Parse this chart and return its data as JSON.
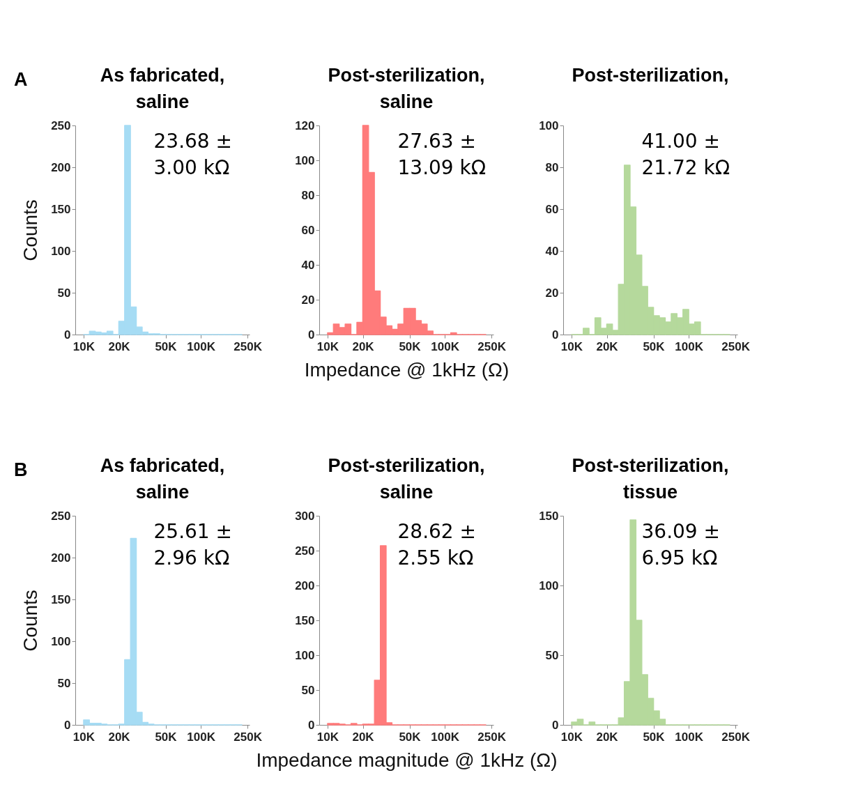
{
  "chart_data": [
    {
      "type": "histogram",
      "title": "As fabricated,\nsaline",
      "ylabel": "Counts",
      "annotations": [
        "A",
        "23.68 ±\n3.00 kΩ"
      ],
      "log": "x",
      "color": "#a6dcf4",
      "bins": [
        10000,
        11220,
        12589,
        14125,
        15849,
        17783,
        19953,
        22387,
        25119,
        28184,
        31623,
        35481,
        39811,
        44668,
        50119,
        56234,
        63096,
        70795,
        79433,
        89125,
        100000,
        112202,
        125893,
        141254,
        158489,
        177828,
        199526,
        223872
      ],
      "values": [
        0,
        4,
        3,
        2,
        4,
        0,
        16,
        250,
        33,
        9,
        3,
        1,
        1,
        0,
        0,
        0,
        0,
        0,
        0,
        0,
        0,
        0,
        0,
        0,
        0,
        0,
        0
      ],
      "xlim": [
        8500,
        260000
      ],
      "xticks": [
        {
          "value": 10000,
          "label": "10K"
        },
        {
          "value": 20000,
          "label": "20K"
        },
        {
          "value": 50000,
          "label": "50K"
        },
        {
          "value": 100000,
          "label": "100K"
        },
        {
          "value": 250000,
          "label": "250K"
        }
      ],
      "ylim": [
        0,
        250
      ],
      "yticks": [
        0,
        50,
        100,
        150,
        200,
        250
      ]
    },
    {
      "type": "histogram",
      "title": "Post-sterilization,\nsaline",
      "xlabel": "Impedance @ 1kHz (Ω)",
      "annotations": [
        "27.63 ±\n13.09 kΩ"
      ],
      "log": "x",
      "color": "#ff7b7b",
      "bins": [
        10000,
        11220,
        12589,
        14125,
        15849,
        17783,
        19953,
        22387,
        25119,
        28184,
        31623,
        35481,
        39811,
        44668,
        50119,
        56234,
        63096,
        70795,
        79433,
        89125,
        100000,
        112202,
        125893,
        141254,
        158489,
        177828,
        199526,
        223872
      ],
      "values": [
        1,
        6,
        4,
        6,
        0,
        7,
        120,
        93,
        25,
        10,
        5,
        3,
        6,
        15,
        15,
        8,
        6,
        2,
        0,
        0,
        0,
        1,
        0,
        0,
        0,
        0,
        0
      ],
      "xlim": [
        8500,
        260000
      ],
      "xticks": [
        {
          "value": 10000,
          "label": "10K"
        },
        {
          "value": 20000,
          "label": "20K"
        },
        {
          "value": 50000,
          "label": "50K"
        },
        {
          "value": 100000,
          "label": "100K"
        },
        {
          "value": 250000,
          "label": "250K"
        }
      ],
      "ylim": [
        0,
        120
      ],
      "yticks": [
        0,
        20,
        40,
        60,
        80,
        100,
        120
      ]
    },
    {
      "type": "histogram",
      "title": "Post-sterilization,",
      "annotations": [
        "41.00 ±\n21.72 kΩ"
      ],
      "log": "x",
      "color": "#b5d99c",
      "bins": [
        10000,
        11220,
        12589,
        14125,
        15849,
        17783,
        19953,
        22387,
        25119,
        28184,
        31623,
        35481,
        39811,
        44668,
        50119,
        56234,
        63096,
        70795,
        79433,
        89125,
        100000,
        112202,
        125893,
        141254,
        158489,
        177828,
        199526,
        223872
      ],
      "values": [
        0,
        0,
        3,
        0,
        8,
        3,
        5,
        2,
        24,
        81,
        61,
        38,
        23,
        13,
        9,
        8,
        6,
        10,
        8,
        12,
        5,
        6,
        0,
        0,
        0,
        0,
        0
      ],
      "xlim": [
        8500,
        260000
      ],
      "xticks": [
        {
          "value": 10000,
          "label": "10K"
        },
        {
          "value": 20000,
          "label": "20K"
        },
        {
          "value": 50000,
          "label": "50K"
        },
        {
          "value": 100000,
          "label": "100K"
        },
        {
          "value": 250000,
          "label": "250K"
        }
      ],
      "ylim": [
        0,
        100
      ],
      "yticks": [
        0,
        20,
        40,
        60,
        80,
        100
      ]
    },
    {
      "type": "histogram",
      "title": "As fabricated,\nsaline",
      "ylabel": "Counts",
      "annotations": [
        "B",
        "25.61 ±\n2.96 kΩ"
      ],
      "log": "x",
      "color": "#a6dcf4",
      "bins": [
        10000,
        11220,
        12589,
        14125,
        15849,
        17783,
        19953,
        22387,
        25119,
        28184,
        31623,
        35481,
        39811,
        44668,
        50119,
        56234,
        63096,
        70795,
        79433,
        89125,
        100000,
        112202,
        125893,
        141254,
        158489,
        177828,
        199526,
        223872
      ],
      "values": [
        6,
        2,
        2,
        1,
        0,
        0,
        1,
        78,
        223,
        15,
        3,
        1,
        0,
        0,
        0,
        0,
        0,
        0,
        0,
        0,
        0,
        0,
        0,
        0,
        0,
        0,
        0
      ],
      "xlim": [
        8500,
        260000
      ],
      "xticks": [
        {
          "value": 10000,
          "label": "10K"
        },
        {
          "value": 20000,
          "label": "20K"
        },
        {
          "value": 50000,
          "label": "50K"
        },
        {
          "value": 100000,
          "label": "100K"
        },
        {
          "value": 250000,
          "label": "250K"
        }
      ],
      "ylim": [
        0,
        250
      ],
      "yticks": [
        0,
        50,
        100,
        150,
        200,
        250
      ]
    },
    {
      "type": "histogram",
      "title": "Post-sterilization,\nsaline",
      "xlabel": "Impedance magnitude @ 1kHz (Ω)",
      "annotations": [
        "28.62 ±\n2.55 kΩ"
      ],
      "log": "x",
      "color": "#ff7b7b",
      "bins": [
        10000,
        11220,
        12589,
        14125,
        15849,
        17783,
        19953,
        22387,
        25119,
        28184,
        31623,
        35481,
        39811,
        44668,
        50119,
        56234,
        63096,
        70795,
        79433,
        89125,
        100000,
        112202,
        125893,
        141254,
        158489,
        177828,
        199526,
        223872
      ],
      "values": [
        2,
        2,
        1,
        0,
        2,
        0,
        1,
        1,
        64,
        257,
        3,
        0,
        0,
        0,
        0,
        0,
        0,
        0,
        0,
        0,
        0,
        0,
        0,
        0,
        0,
        0,
        0
      ],
      "xlim": [
        8500,
        260000
      ],
      "xticks": [
        {
          "value": 10000,
          "label": "10K"
        },
        {
          "value": 20000,
          "label": "20K"
        },
        {
          "value": 50000,
          "label": "50K"
        },
        {
          "value": 100000,
          "label": "100K"
        },
        {
          "value": 250000,
          "label": "250K"
        }
      ],
      "ylim": [
        0,
        300
      ],
      "yticks": [
        0,
        50,
        100,
        150,
        200,
        250,
        300
      ]
    },
    {
      "type": "histogram",
      "title": "Post-sterilization,\ntissue",
      "annotations": [
        "36.09 ±\n6.95 kΩ"
      ],
      "log": "x",
      "color": "#b5d99c",
      "bins": [
        10000,
        11220,
        12589,
        14125,
        15849,
        17783,
        19953,
        22387,
        25119,
        28184,
        31623,
        35481,
        39811,
        44668,
        50119,
        56234,
        63096,
        70795,
        79433,
        89125,
        100000,
        112202,
        125893,
        141254,
        158489,
        177828,
        199526,
        223872
      ],
      "values": [
        2,
        4,
        0,
        2,
        0,
        0,
        0,
        0,
        5,
        31,
        147,
        75,
        36,
        19,
        10,
        4,
        0,
        0,
        0,
        0,
        0,
        0,
        0,
        0,
        0,
        0,
        0
      ],
      "xlim": [
        8500,
        260000
      ],
      "xticks": [
        {
          "value": 10000,
          "label": "10K"
        },
        {
          "value": 20000,
          "label": "20K"
        },
        {
          "value": 50000,
          "label": "50K"
        },
        {
          "value": 100000,
          "label": "100K"
        },
        {
          "value": 250000,
          "label": "250K"
        }
      ],
      "ylim": [
        0,
        150
      ],
      "yticks": [
        0,
        50,
        100,
        150
      ]
    }
  ]
}
